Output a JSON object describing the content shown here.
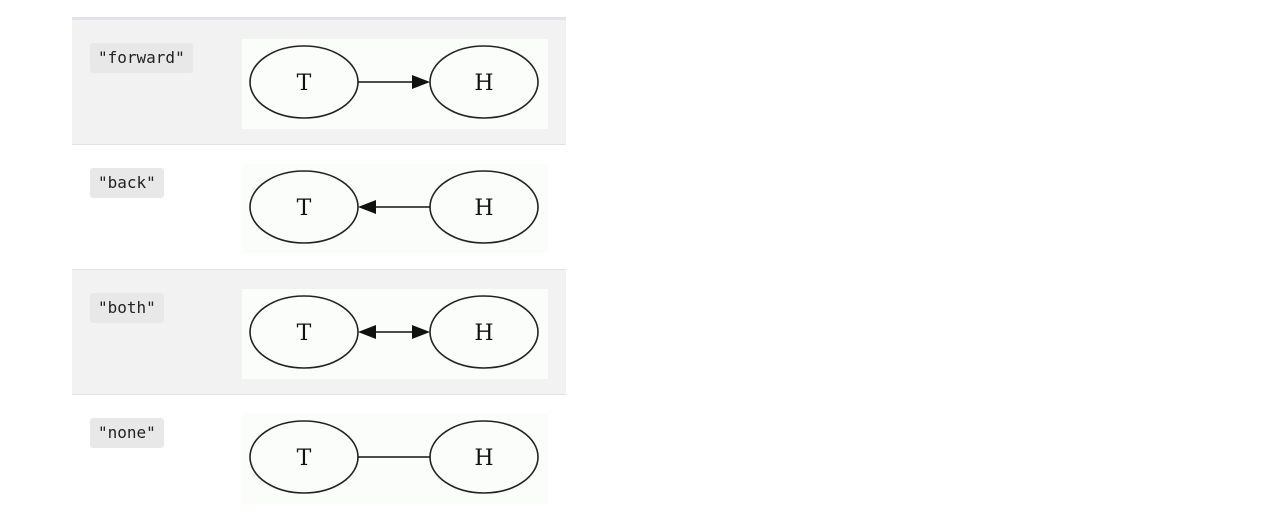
{
  "rows": [
    {
      "value": "\"forward\"",
      "tail": "T",
      "head": "H",
      "arrow": "forward"
    },
    {
      "value": "\"back\"",
      "tail": "T",
      "head": "H",
      "arrow": "back"
    },
    {
      "value": "\"both\"",
      "tail": "T",
      "head": "H",
      "arrow": "both"
    },
    {
      "value": "\"none\"",
      "tail": "T",
      "head": "H",
      "arrow": "none"
    }
  ]
}
